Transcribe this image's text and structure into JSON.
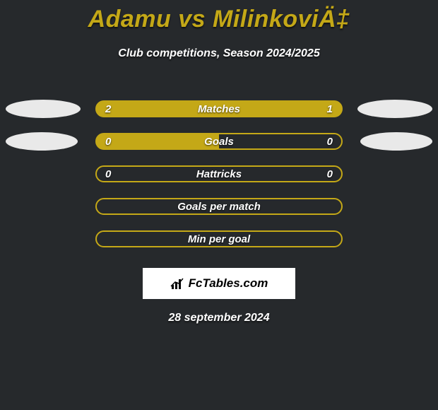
{
  "colors": {
    "background": "#26292c",
    "accent": "#c4a817",
    "text": "#ffffff",
    "ellipse": "#e9e9e9",
    "logo_bg": "#ffffff",
    "logo_text": "#000000"
  },
  "header": {
    "title": "Adamu vs MilinkoviÄ‡",
    "subtitle": "Club competitions, Season 2024/2025"
  },
  "rows": [
    {
      "left": "2",
      "label": "Matches",
      "right": "1",
      "fill": "filled",
      "ellipse_left": true,
      "ellipse_right": true,
      "ellipse_w": "w1"
    },
    {
      "left": "0",
      "label": "Goals",
      "right": "0",
      "fill": "half",
      "ellipse_left": true,
      "ellipse_right": true,
      "ellipse_w": "w2"
    },
    {
      "left": "0",
      "label": "Hattricks",
      "right": "0",
      "fill": "empty",
      "ellipse_left": false,
      "ellipse_right": false,
      "ellipse_w": ""
    },
    {
      "left": "",
      "label": "Goals per match",
      "right": "",
      "fill": "empty",
      "ellipse_left": false,
      "ellipse_right": false,
      "ellipse_w": ""
    },
    {
      "left": "",
      "label": "Min per goal",
      "right": "",
      "fill": "empty",
      "ellipse_left": false,
      "ellipse_right": false,
      "ellipse_w": ""
    }
  ],
  "footer": {
    "logo_text": "FcTables.com",
    "date": "28 september 2024"
  }
}
